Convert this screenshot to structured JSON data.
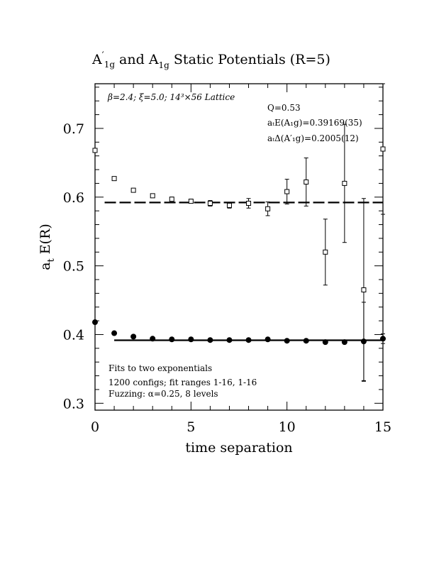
{
  "chart_data": {
    "type": "scatter",
    "title": {
      "pre": "A",
      "prime": "′",
      "sub": "1g",
      "mid": " and A",
      "sub2": "1g",
      "post": " Static Potentials (R=5)"
    },
    "xlabel": "time separation",
    "ylabel": {
      "a": "a",
      "sub": "t",
      "rest": " E(R)"
    },
    "xlim": [
      0,
      15
    ],
    "ylim": [
      0.29,
      0.765
    ],
    "x_ticks": [
      0,
      5,
      10,
      15
    ],
    "y_ticks": [
      0.3,
      0.4,
      0.5,
      0.6,
      0.7
    ],
    "x_tick_labels": [
      "0",
      "5",
      "10",
      "15"
    ],
    "y_tick_labels": [
      "0.3",
      "0.4",
      "0.5",
      "0.6",
      "0.7"
    ],
    "grid": false,
    "annotations": {
      "lattice": "β=2.4; ξ=5.0; 14³×56 Lattice",
      "q": "Q=0.53",
      "energy": "aₜE(A₁g)=0.39169(35)",
      "delta": "aₜΔ(A′₁g)=0.2005(12)",
      "fits1": "Fits to two exponentials",
      "fits2": "1200 configs; fit ranges 1-16, 1-16",
      "fits3": "Fuzzing: α=0.25, 8 levels"
    },
    "series": [
      {
        "marker": "open-square",
        "x": [
          0,
          1,
          2,
          3,
          4,
          5,
          6,
          7,
          8,
          9,
          10,
          11,
          12,
          13,
          14,
          15
        ],
        "y": [
          0.668,
          0.627,
          0.61,
          0.602,
          0.597,
          0.594,
          0.591,
          0.588,
          0.591,
          0.583,
          0.608,
          0.622,
          0.52,
          0.62,
          0.465,
          0.67
        ],
        "err": [
          0.002,
          0.002,
          0.002,
          0.002,
          0.003,
          0.003,
          0.004,
          0.004,
          0.007,
          0.01,
          0.018,
          0.035,
          0.048,
          0.086,
          0.133,
          0.095
        ]
      },
      {
        "marker": "filled-circle",
        "x": [
          0,
          1,
          2,
          3,
          4,
          5,
          6,
          7,
          8,
          9,
          10,
          11,
          12,
          13,
          14,
          15
        ],
        "y": [
          0.418,
          0.402,
          0.397,
          0.394,
          0.393,
          0.393,
          0.392,
          0.392,
          0.392,
          0.393,
          0.391,
          0.391,
          0.389,
          0.389,
          0.39,
          0.394
        ],
        "err": [
          0,
          0,
          0,
          0,
          0,
          0,
          0,
          0,
          0,
          0,
          0,
          0,
          0,
          0,
          0.057,
          0.007
        ]
      }
    ],
    "fit_lines": [
      {
        "style": "dashed",
        "y": 0.5922,
        "x_range": [
          0.5,
          15
        ]
      },
      {
        "style": "solid",
        "y": 0.3917,
        "x_range": [
          1,
          15
        ]
      }
    ]
  }
}
